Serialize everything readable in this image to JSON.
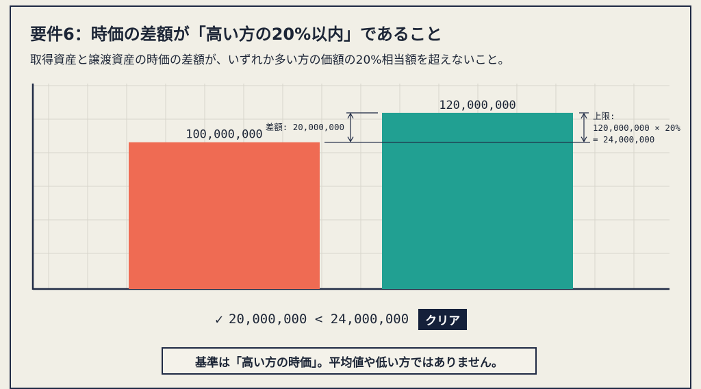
{
  "header": {
    "title": "要件6：時価の差額が「高い方の20%以内」であること",
    "subtitle": "取得資産と譲渡資産の時価の差額が、いずれか多い方の価額の20%相当額を超えないこと。"
  },
  "chart_data": {
    "type": "bar",
    "categories": [
      "",
      ""
    ],
    "values": [
      100000000,
      120000000
    ],
    "value_labels": [
      "100,000,000",
      "120,000,000"
    ],
    "colors": [
      "#ef6b53",
      "#21a092"
    ],
    "ylim": [
      0,
      140000000
    ],
    "grid": true,
    "annotations": {
      "difference_label": "差額: 20,000,000",
      "limit_label_line1": "上限:",
      "limit_label_line2": "120,000,000 × 20%",
      "limit_label_line3": "= 24,000,000"
    }
  },
  "result": {
    "check_icon": "✓",
    "comparison": "20,000,000 < 24,000,000",
    "badge": "クリア"
  },
  "note": "基準は「高い方の時価」。平均値や低い方ではありません。"
}
